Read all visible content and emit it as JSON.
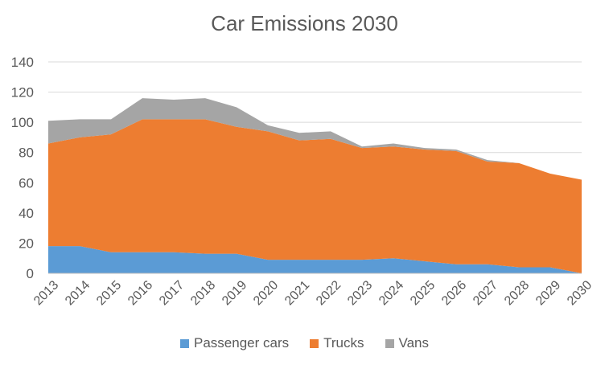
{
  "chart_data": {
    "type": "area",
    "stacked": true,
    "title": "Car Emissions 2030",
    "xlabel": "",
    "ylabel": "",
    "ylim": [
      0,
      140
    ],
    "yticks": [
      0,
      20,
      40,
      60,
      80,
      100,
      120,
      140
    ],
    "grid": true,
    "legend_position": "bottom",
    "categories": [
      "2013",
      "2014",
      "2015",
      "2016",
      "2017",
      "2018",
      "2019",
      "2020",
      "2021",
      "2022",
      "2023",
      "2024",
      "2025",
      "2026",
      "2027",
      "2028",
      "2029",
      "2030"
    ],
    "series": [
      {
        "name": "Passenger cars",
        "color": "#5b9bd5",
        "values": [
          18,
          18,
          14,
          14,
          14,
          13,
          13,
          9,
          9,
          9,
          9,
          10,
          8,
          6,
          6,
          4,
          4,
          0
        ]
      },
      {
        "name": "Trucks",
        "color": "#ed7d31",
        "values": [
          68,
          72,
          78,
          88,
          88,
          89,
          84,
          85,
          79,
          80,
          74,
          74,
          74,
          75,
          68,
          69,
          62,
          62
        ]
      },
      {
        "name": "Vans",
        "color": "#a5a5a5",
        "values": [
          15,
          12,
          10,
          14,
          13,
          14,
          13,
          4,
          5,
          5,
          1,
          2,
          1,
          1,
          1,
          0,
          0,
          0
        ]
      }
    ]
  }
}
